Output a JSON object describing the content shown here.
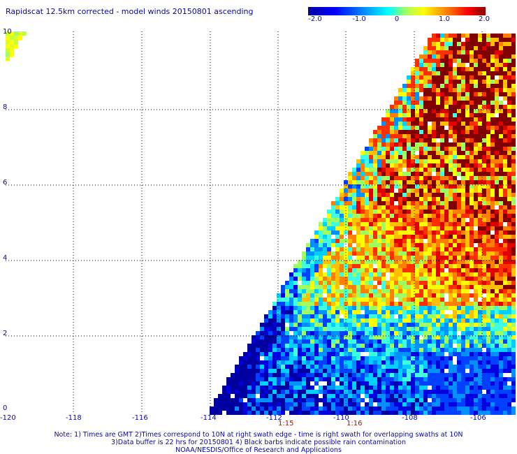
{
  "title": "Rapidscat 12.5km corrected - model winds 20150801 ascending",
  "colorbar": {
    "labels": [
      "-2.0",
      "-1.0",
      "0",
      "1.0",
      "2.0"
    ],
    "colors": [
      "#0000a0",
      "#0000ff",
      "#0080ff",
      "#00ffff",
      "#80ff80",
      "#ffff00",
      "#ff8000",
      "#ff0000",
      "#800000"
    ]
  },
  "map": {
    "lon_labels": [
      "-120",
      "-118",
      "-116",
      "-114",
      "-112",
      "-110",
      "-108",
      "-106"
    ],
    "lat_labels": [
      "0",
      "2",
      "4",
      "6",
      "8",
      "10"
    ],
    "time_labels": [
      "1:15",
      "1:16"
    ]
  },
  "notes": [
    "Note: 1) Times are GMT 2)Times correspond to 10N at right swath edge - time is right swath for overlapping swaths at 10N",
    "3)Data buffer is 22 hrs for 20150801 4) Black barbs indicate possible rain contamination",
    "NOAA/NESDIS/Office of Research and Applications"
  ]
}
